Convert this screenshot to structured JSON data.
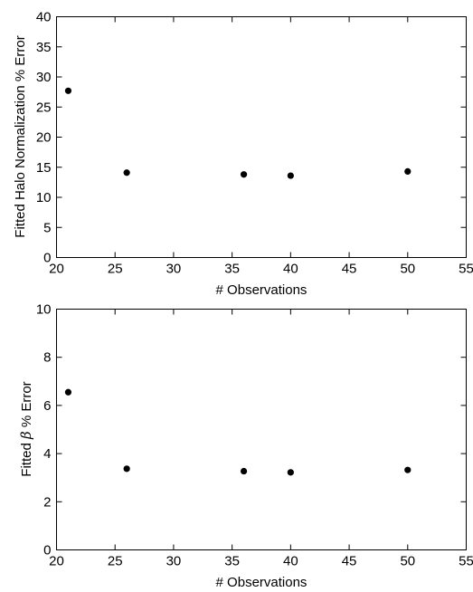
{
  "chart_data": [
    {
      "type": "scatter",
      "title": "",
      "xlabel": "# Observations",
      "ylabel": "Fitted Halo Normalization % Error",
      "xlim": [
        20,
        55
      ],
      "ylim": [
        0,
        40
      ],
      "xticks": [
        20,
        25,
        30,
        35,
        40,
        45,
        50,
        55
      ],
      "yticks": [
        0,
        5,
        10,
        15,
        20,
        25,
        30,
        35,
        40
      ],
      "x": [
        21,
        26,
        36,
        40,
        50
      ],
      "y": [
        27.7,
        14.1,
        13.8,
        13.6,
        14.3
      ],
      "color": "#000000",
      "grid": false,
      "legend": "none"
    },
    {
      "type": "scatter",
      "title": "",
      "xlabel": "# Observations",
      "ylabel_prefix": "Fitted ",
      "ylabel_symbol": "β",
      "ylabel_suffix": " % Error",
      "xlim": [
        20,
        55
      ],
      "ylim": [
        0,
        10
      ],
      "xticks": [
        20,
        25,
        30,
        35,
        40,
        45,
        50,
        55
      ],
      "yticks": [
        0,
        2,
        4,
        6,
        8,
        10
      ],
      "x": [
        21,
        26,
        36,
        40,
        50
      ],
      "y": [
        6.55,
        3.37,
        3.27,
        3.22,
        3.32
      ],
      "color": "#000000",
      "grid": false,
      "legend": "none"
    }
  ]
}
